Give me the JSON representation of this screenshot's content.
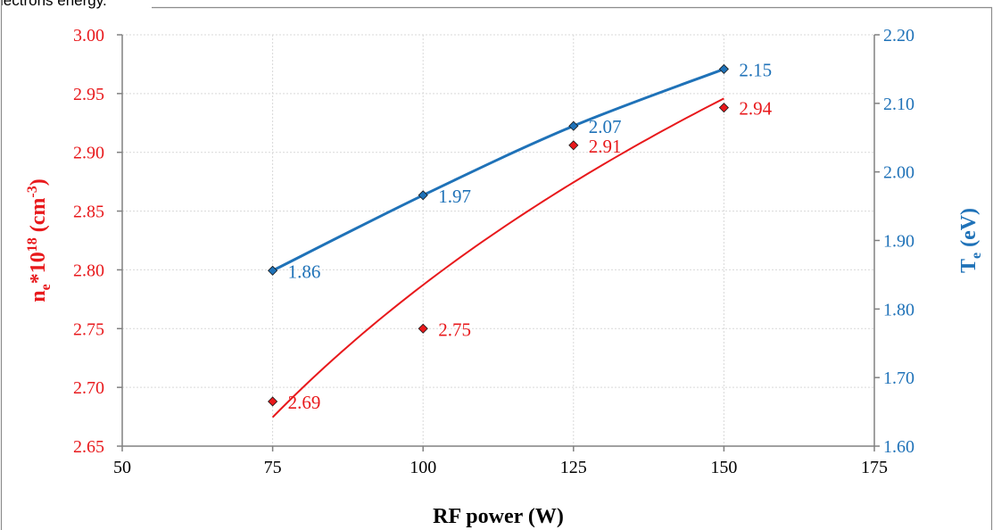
{
  "caption": "lectrons energy.",
  "chart_data": {
    "type": "scatter",
    "title": "",
    "xlabel": "RF power (W)",
    "y1label": {
      "base": "n",
      "sub": "e",
      "mid": "*10",
      "sup1": "18",
      "unit_open": " (cm",
      "sup2": "-3",
      "unit_close": ")"
    },
    "y2label": {
      "base": "T",
      "sub": "e",
      "unit": " (eV)"
    },
    "xlim": [
      50,
      175
    ],
    "x_ticks": [
      "50",
      "75",
      "100",
      "125",
      "150",
      "175"
    ],
    "y1lim": [
      2.65,
      3.0
    ],
    "y1_ticks": [
      "2.65",
      "2.70",
      "2.75",
      "2.80",
      "2.85",
      "2.90",
      "2.95",
      "3.00"
    ],
    "y2lim": [
      1.6,
      2.2
    ],
    "y2_ticks": [
      "1.60",
      "1.70",
      "1.80",
      "1.90",
      "2.00",
      "2.10",
      "2.20"
    ],
    "grid": true,
    "series": [
      {
        "axis": "left",
        "color": "#e8191c",
        "x": [
          75,
          100,
          125,
          150
        ],
        "y": [
          2.688,
          2.75,
          2.906,
          2.938
        ],
        "labels": [
          "2.69",
          "2.75",
          "2.91",
          "2.94"
        ],
        "trendline": "logarithmic"
      },
      {
        "axis": "right",
        "color": "#1f72b8",
        "x": [
          75,
          100,
          125,
          150
        ],
        "y": [
          1.856,
          1.966,
          2.067,
          2.15
        ],
        "labels": [
          "1.86",
          "1.97",
          "2.07",
          "2.15"
        ],
        "trendline": "smooth-line"
      }
    ],
    "colors": {
      "left_axis": "#e8191c",
      "right_axis": "#1f72b8",
      "axis_line": "#808080",
      "grid": "#d9d9d9"
    }
  }
}
